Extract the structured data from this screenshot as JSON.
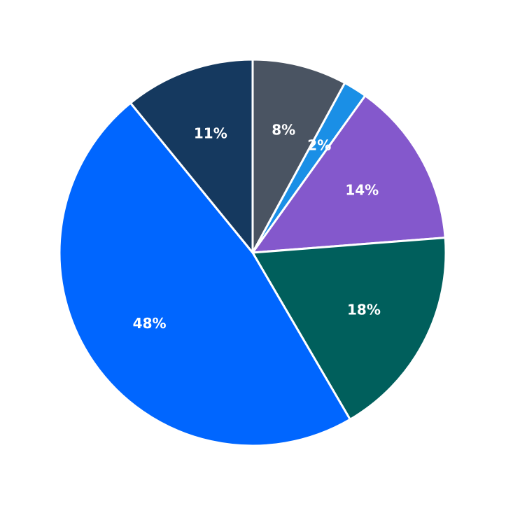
{
  "chart_data": {
    "type": "pie",
    "values": [
      8,
      2,
      14,
      18,
      48,
      11
    ],
    "value_labels": [
      "8%",
      "2%",
      "14%",
      "18%",
      "48%",
      "11%"
    ],
    "colors": [
      "#4a5462",
      "#1a8fe6",
      "#8458cc",
      "#005f5c",
      "#0066ff",
      "#15395f"
    ]
  }
}
